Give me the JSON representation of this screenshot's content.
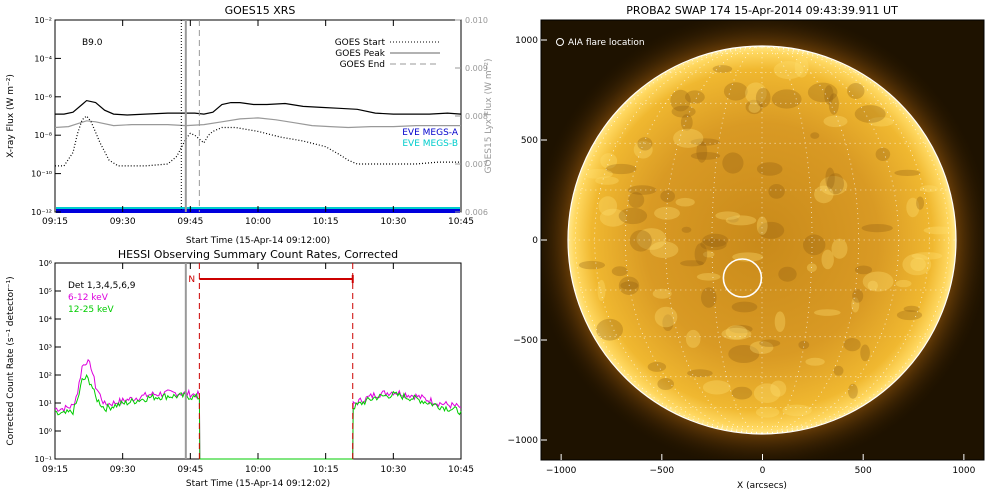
{
  "chart_data": [
    {
      "type": "line",
      "title": "GOES15 XRS",
      "xlabel": "Start Time (15-Apr-14 09:12:00)",
      "ylabel": "X-ray Flux (W m⁻²)",
      "ylabel_right": "GOES15 Lyx Flux (W m⁻²)",
      "xticks": [
        "09:15",
        "09:30",
        "09:45",
        "10:00",
        "10:15",
        "10:30",
        "10:45"
      ],
      "yticks_left": [
        "10⁻¹²",
        "10⁻¹⁰",
        "10⁻⁸",
        "10⁻⁶",
        "10⁻⁴",
        "10⁻²"
      ],
      "yticks_right": [
        "0.006",
        "0.007",
        "0.008",
        "0.009",
        "0.010"
      ],
      "x_range_min": [
        15,
        105
      ],
      "ylim_log": [
        -12,
        -2
      ],
      "ylim_right": [
        0.006,
        0.01
      ],
      "annotation": "B9.0",
      "legend_left": [
        "GOES Start",
        "GOES Peak",
        "GOES End"
      ],
      "legend_right": [
        "EVE MEGS-A",
        "EVE MEGS-B"
      ],
      "goes_start_min": 43,
      "goes_peak_min": 44,
      "goes_end_min": 47,
      "series": [
        {
          "name": "long",
          "color": "#000000",
          "x": [
            15,
            17,
            19,
            21,
            22,
            24,
            26,
            28,
            31,
            35,
            40,
            44,
            46,
            48,
            50,
            52,
            54,
            56,
            59,
            62,
            66,
            70,
            74,
            78,
            82,
            86,
            90,
            94,
            98,
            102,
            105
          ],
          "y": [
            -6.9,
            -6.9,
            -6.8,
            -6.4,
            -6.2,
            -6.3,
            -6.7,
            -6.9,
            -6.95,
            -6.9,
            -6.85,
            -6.85,
            -6.85,
            -6.9,
            -6.8,
            -6.4,
            -6.3,
            -6.3,
            -6.4,
            -6.4,
            -6.35,
            -6.5,
            -6.55,
            -6.6,
            -6.65,
            -6.85,
            -6.9,
            -6.9,
            -6.9,
            -6.85,
            -6.9
          ]
        },
        {
          "name": "lyman-alpha",
          "color": "#999999",
          "x": [
            15,
            18,
            20,
            22,
            24,
            28,
            32,
            36,
            40,
            44,
            48,
            52,
            56,
            60,
            64,
            68,
            72,
            76,
            80,
            85,
            90,
            95,
            100,
            105
          ],
          "y": [
            -7.6,
            -7.55,
            -7.4,
            -7.25,
            -7.3,
            -7.5,
            -7.45,
            -7.45,
            -7.45,
            -7.5,
            -7.45,
            -7.3,
            -7.15,
            -7.1,
            -7.2,
            -7.35,
            -7.5,
            -7.55,
            -7.6,
            -7.55,
            -7.55,
            -7.5,
            -7.5,
            -7.5
          ]
        },
        {
          "name": "short",
          "color": "#000000",
          "x": [
            15,
            17,
            19,
            20,
            21,
            22,
            23,
            25,
            27,
            29,
            31,
            35,
            40,
            42,
            44,
            45,
            46,
            48,
            49,
            50,
            52,
            55,
            60,
            65,
            70,
            75,
            78,
            80,
            82,
            85,
            90,
            95,
            100,
            105
          ],
          "y": [
            -9.6,
            -9.6,
            -8.9,
            -7.9,
            -7.2,
            -7.0,
            -7.3,
            -8.4,
            -9.3,
            -9.6,
            -9.6,
            -9.6,
            -9.5,
            -9.1,
            -8.2,
            -7.9,
            -8.0,
            -8.4,
            -8.0,
            -7.8,
            -7.6,
            -7.6,
            -7.8,
            -8.1,
            -8.3,
            -8.6,
            -9.0,
            -9.3,
            -9.5,
            -9.5,
            -9.5,
            -9.5,
            -9.4,
            -9.4
          ]
        }
      ]
    },
    {
      "type": "line",
      "title": "HESSI Observing Summary Count Rates, Corrected",
      "xlabel": "Start Time (15-Apr-14 09:12:02)",
      "ylabel": "Corrected Count Rate (s⁻¹ detector⁻¹)",
      "xticks": [
        "09:15",
        "09:30",
        "09:45",
        "10:00",
        "10:15",
        "10:30",
        "10:45"
      ],
      "yticks": [
        "10⁻¹",
        "10⁰",
        "10¹",
        "10²",
        "10³",
        "10⁴",
        "10⁵",
        "10⁶"
      ],
      "x_range_min": [
        15,
        105
      ],
      "ylim_log": [
        -1,
        6
      ],
      "legend_title": "Det 1,3,4,5,6,9",
      "night_label": "N",
      "night_interval_min": [
        47,
        81
      ],
      "vline_min": 44,
      "series": [
        {
          "name": "6-12 keV",
          "color": "#dd00dd",
          "x": [
            15,
            17,
            19,
            20,
            21,
            22,
            23,
            24,
            26,
            28,
            32,
            36,
            40,
            44,
            46,
            47,
            47.1,
            81,
            81.1,
            83,
            86,
            90,
            95,
            100,
            105
          ],
          "y": [
            0.8,
            0.8,
            0.9,
            1.4,
            2.3,
            2.5,
            2.3,
            1.6,
            0.95,
            1.0,
            1.15,
            1.3,
            1.35,
            1.35,
            1.3,
            1.3,
            -1,
            -1,
            0.95,
            1.1,
            1.3,
            1.4,
            1.25,
            1.0,
            0.85
          ]
        },
        {
          "name": "12-25 keV",
          "color": "#00cc00",
          "x": [
            15,
            17,
            19,
            20,
            21,
            22,
            23,
            24,
            26,
            28,
            32,
            36,
            40,
            44,
            46,
            47,
            47.1,
            81,
            81.1,
            83,
            86,
            90,
            95,
            100,
            105
          ],
          "y": [
            0.6,
            0.6,
            0.7,
            1.1,
            1.8,
            1.9,
            1.7,
            1.2,
            0.8,
            0.9,
            1.05,
            1.2,
            1.25,
            1.25,
            1.2,
            1.2,
            -1,
            -1,
            0.85,
            1.0,
            1.2,
            1.3,
            1.15,
            0.9,
            0.7
          ]
        }
      ]
    },
    {
      "type": "scatter",
      "title": "PROBA2 SWAP 174 15-Apr-2014 09:43:39.911 UT",
      "xlabel": "X (arcsecs)",
      "xticks": [
        "−1000",
        "−500",
        "0",
        "500",
        "1000"
      ],
      "yticks": [
        "−1000",
        "−500",
        "0",
        "500",
        "1000"
      ],
      "xlim": [
        -1100,
        1100
      ],
      "ylim": [
        -1100,
        1100
      ],
      "solar_radius_arcsec": 960,
      "annotation": "AIA flare location",
      "flare_location": [
        -100,
        -190
      ],
      "grid_spacing_deg": 15,
      "colors": {
        "sun_core": "#ffcc33",
        "sun_edge": "#cc7700",
        "background": "#1a1000"
      }
    }
  ]
}
